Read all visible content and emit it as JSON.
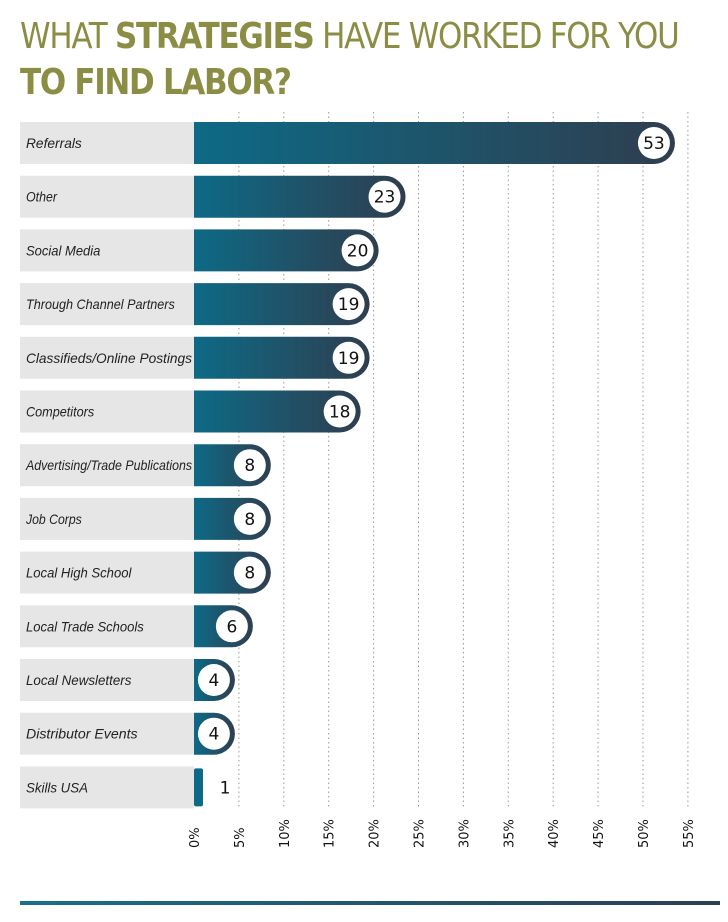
{
  "title": {
    "line1_pre": "WHAT ",
    "line1_bold": "STRATEGIES",
    "line1_post": " HAVE WORKED FOR YOU",
    "line2_bold": "TO FIND LABOR?"
  },
  "colors": {
    "title": "#8b8d45",
    "bar_start": "#0d6a86",
    "bar_end": "#2f3e4f",
    "label_bg": "#e6e6e6",
    "grid": "#999999"
  },
  "chart_data": {
    "type": "bar",
    "orientation": "horizontal",
    "title": "WHAT STRATEGIES HAVE WORKED FOR YOU TO FIND LABOR?",
    "categories": [
      "Referrals",
      "Other",
      "Social Media",
      "Through Channel Partners",
      "Classifieds/Online Postings",
      "Competitors",
      "Advertising/Trade Publications",
      "Job Corps",
      "Local High School",
      "Local Trade Schools",
      "Local Newsletters",
      "Distributor Events",
      "Skills USA"
    ],
    "values": [
      53,
      23,
      20,
      19,
      19,
      18,
      8,
      8,
      8,
      6,
      4,
      4,
      1
    ],
    "data_labels": [
      "53",
      "23",
      "20",
      "19",
      "19",
      "18",
      "8",
      "8",
      "8",
      "6",
      "4",
      "4",
      "1"
    ],
    "xlim": [
      0,
      55
    ],
    "x_ticks": [
      0,
      5,
      10,
      15,
      20,
      25,
      30,
      35,
      40,
      45,
      50,
      55
    ],
    "x_tick_labels": [
      "0%",
      "5%",
      "10%",
      "15%",
      "20%",
      "25%",
      "30%",
      "35%",
      "40%",
      "45%",
      "50%",
      "55%"
    ],
    "grid": "vertical dotted",
    "legend": "none"
  }
}
